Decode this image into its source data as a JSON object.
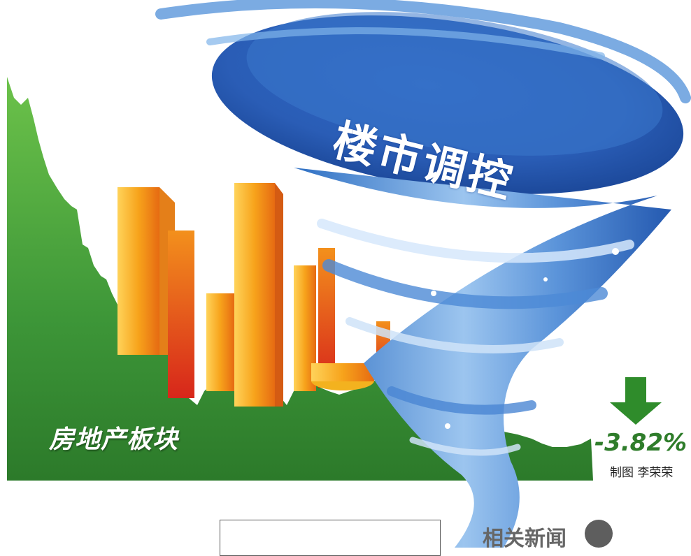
{
  "headline": "楼市调控",
  "sector_label": "房地产板块",
  "change": "-3.82%",
  "credit": "制图 李荣荣",
  "news_tag": "相关新闻",
  "colors": {
    "chart_green": "#3f9a3a",
    "chart_green_dark": "#2a7a27",
    "building_orange": "#f39a18",
    "building_red": "#e4421c",
    "tornado_blue": "#2f6fc3",
    "arrow_green": "#2f8c2b"
  },
  "icons": {
    "arrow": "down-arrow-icon",
    "tornado": "tornado-icon"
  }
}
